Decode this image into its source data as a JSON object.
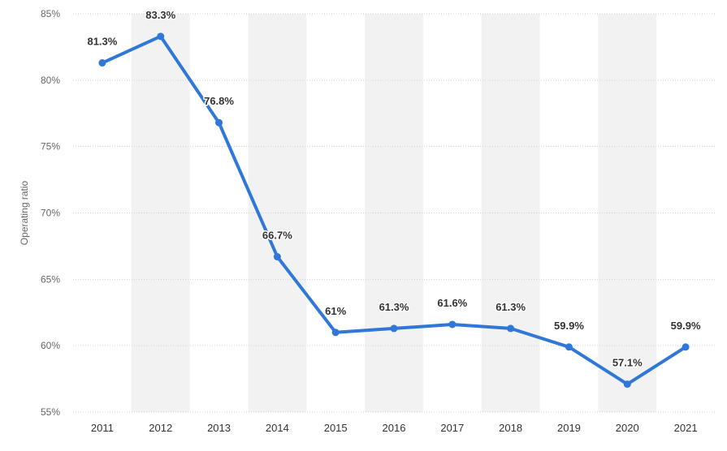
{
  "chart_data": {
    "type": "line",
    "ylabel": "Operating ratio",
    "ylim": [
      55,
      85
    ],
    "yticks": [
      55,
      60,
      65,
      70,
      75,
      80,
      85
    ],
    "ytick_labels": [
      "55%",
      "60%",
      "65%",
      "70%",
      "75%",
      "80%",
      "85%"
    ],
    "grid": true,
    "categories": [
      "2011",
      "2012",
      "2013",
      "2014",
      "2015",
      "2016",
      "2017",
      "2018",
      "2019",
      "2020",
      "2021"
    ],
    "values": [
      81.3,
      83.3,
      76.8,
      66.7,
      61,
      61.3,
      61.6,
      61.3,
      59.9,
      57.1,
      59.9
    ],
    "data_labels": [
      "81.3%",
      "83.3%",
      "76.8%",
      "66.7%",
      "61%",
      "61.3%",
      "61.6%",
      "61.3%",
      "59.9%",
      "57.1%",
      "59.9%"
    ],
    "colors": {
      "line": "#2f77d8",
      "band": "#f2f2f2",
      "grid": "#cfcfcf"
    }
  }
}
